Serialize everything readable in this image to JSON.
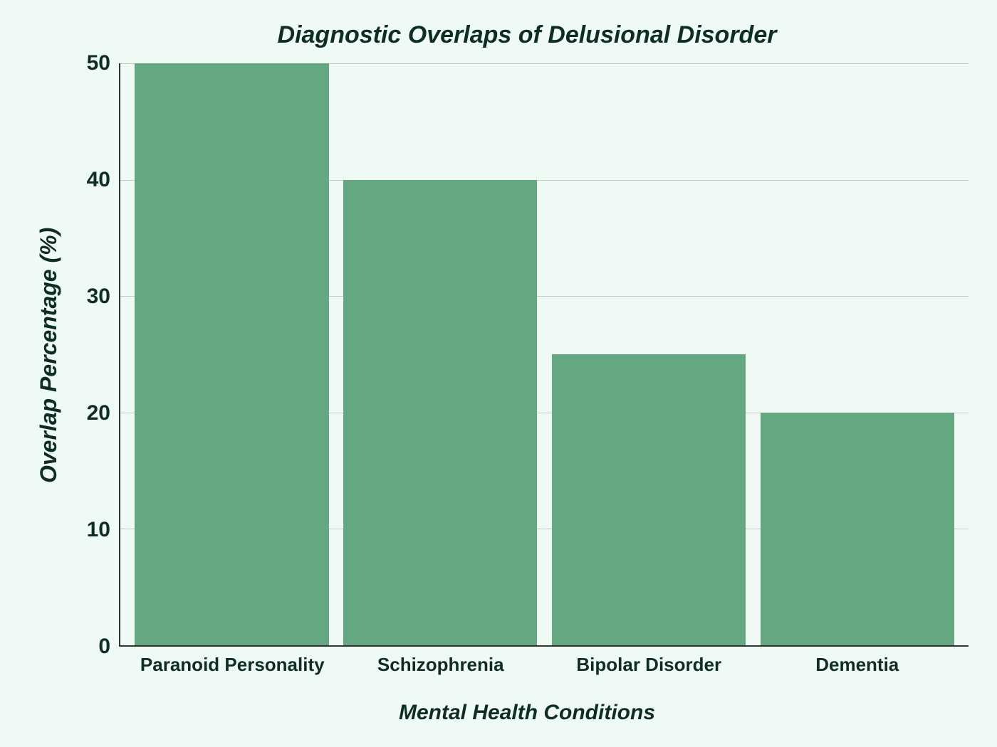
{
  "chart": {
    "type": "bar",
    "title": "Diagnostic Overlaps of Delusional Disorder",
    "title_fontsize": 34,
    "title_color": "#0f2e23",
    "xlabel": "Mental Health Conditions",
    "ylabel": "Overlap Percentage (%)",
    "label_fontsize": 32,
    "label_color": "#0f2e23",
    "categories": [
      "Paranoid Personality",
      "Schizophrenia",
      "Bipolar Disorder",
      "Dementia"
    ],
    "values": [
      50,
      40,
      25,
      20
    ],
    "bar_color": "#65a780",
    "background_color": "#f0faf4",
    "grid_color": "#c5c9c7",
    "axis_color": "#333333",
    "tick_color": "#0f2e23",
    "ylim": [
      0,
      50
    ],
    "ytick_step": 10,
    "yticks": [
      50,
      40,
      30,
      20,
      10,
      0
    ],
    "tick_fontsize": 30,
    "xtick_fontsize": 26,
    "bar_width": 0.93
  }
}
